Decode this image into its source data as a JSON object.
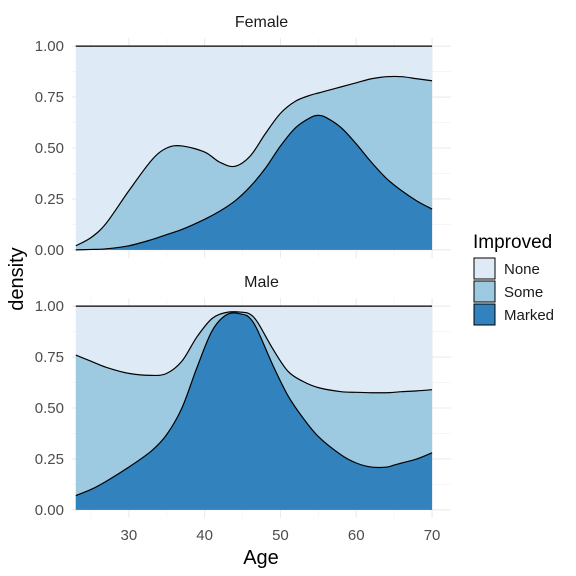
{
  "chart_data": {
    "type": "area",
    "subtype": "conditional density (stacked, proportions)",
    "xlabel": "Age",
    "ylabel": "density",
    "xlim": [
      22.5,
      72.5
    ],
    "x_ticks": [
      30,
      40,
      50,
      60,
      70
    ],
    "ylim": [
      -0.04,
      1.04
    ],
    "y_ticks": [
      0.0,
      0.25,
      0.5,
      0.75,
      1.0
    ],
    "y_tick_labels": [
      "0.00",
      "0.25",
      "0.50",
      "0.75",
      "1.00"
    ],
    "grid": true,
    "legend": {
      "title": "Improved",
      "position": "right",
      "entries": [
        {
          "label": "None",
          "color": "#deebf7"
        },
        {
          "label": "Some",
          "color": "#9ecae1"
        },
        {
          "label": "Marked",
          "color": "#3182bd"
        }
      ]
    },
    "stack_order_bottom_to_top": [
      "Marked",
      "Some",
      "None"
    ],
    "panels": [
      {
        "title": "Female",
        "x": [
          23,
          25,
          27,
          30,
          33,
          35,
          37,
          40,
          42,
          44,
          46,
          48,
          50,
          52,
          54,
          55,
          56,
          58,
          60,
          62,
          64,
          66,
          68,
          70
        ],
        "series": [
          {
            "name": "Marked",
            "cumulative": [
              0.0,
              0.002,
              0.005,
              0.02,
              0.05,
              0.075,
              0.1,
              0.15,
              0.19,
              0.24,
              0.31,
              0.4,
              0.51,
              0.6,
              0.65,
              0.66,
              0.65,
              0.6,
              0.52,
              0.43,
              0.35,
              0.29,
              0.24,
              0.2
            ]
          },
          {
            "name": "Some",
            "cumulative": [
              0.02,
              0.06,
              0.13,
              0.29,
              0.44,
              0.5,
              0.51,
              0.48,
              0.43,
              0.41,
              0.46,
              0.57,
              0.67,
              0.73,
              0.76,
              0.77,
              0.78,
              0.8,
              0.82,
              0.84,
              0.85,
              0.85,
              0.84,
              0.83
            ]
          },
          {
            "name": "None",
            "cumulative": [
              1,
              1,
              1,
              1,
              1,
              1,
              1,
              1,
              1,
              1,
              1,
              1,
              1,
              1,
              1,
              1,
              1,
              1,
              1,
              1,
              1,
              1,
              1,
              1
            ]
          }
        ]
      },
      {
        "title": "Male",
        "x": [
          23,
          25,
          27,
          30,
          33,
          35,
          37,
          39,
          41,
          43,
          45,
          46,
          47,
          49,
          51,
          53,
          55,
          58,
          60,
          62,
          64,
          65,
          66,
          68,
          70
        ],
        "series": [
          {
            "name": "Marked",
            "cumulative": [
              0.07,
              0.1,
              0.14,
              0.21,
              0.29,
              0.37,
              0.5,
              0.7,
              0.88,
              0.96,
              0.96,
              0.94,
              0.88,
              0.71,
              0.56,
              0.45,
              0.36,
              0.27,
              0.23,
              0.21,
              0.21,
              0.22,
              0.23,
              0.25,
              0.28
            ]
          },
          {
            "name": "Some",
            "cumulative": [
              0.76,
              0.73,
              0.7,
              0.67,
              0.66,
              0.67,
              0.73,
              0.85,
              0.94,
              0.97,
              0.97,
              0.96,
              0.92,
              0.79,
              0.68,
              0.63,
              0.6,
              0.58,
              0.577,
              0.575,
              0.575,
              0.577,
              0.58,
              0.584,
              0.59
            ]
          },
          {
            "name": "None",
            "cumulative": [
              1,
              1,
              1,
              1,
              1,
              1,
              1,
              1,
              1,
              1,
              1,
              1,
              1,
              1,
              1,
              1,
              1,
              1,
              1,
              1,
              1,
              1,
              1,
              1,
              1
            ]
          }
        ]
      }
    ]
  }
}
